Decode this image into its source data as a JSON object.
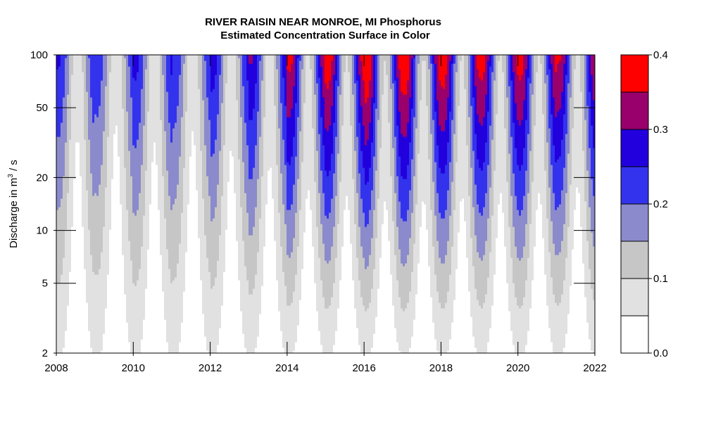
{
  "chart_data": {
    "type": "contour",
    "title": "RIVER RAISIN NEAR MONROE, MI   Phosphorus",
    "subtitle": "Estimated Concentration Surface in Color",
    "ylabel": {
      "prefix": "Discharge in m",
      "superscript": "3",
      "suffix": " / s"
    },
    "x": {
      "range": [
        2008,
        2022
      ],
      "ticks": [
        2008,
        2010,
        2012,
        2014,
        2016,
        2018,
        2020,
        2022
      ]
    },
    "y": {
      "scale": "log",
      "range": [
        2,
        100
      ],
      "ticks": [
        2,
        5,
        10,
        20,
        50,
        100
      ]
    },
    "levels": [
      0.0,
      0.05,
      0.1,
      0.15,
      0.2,
      0.25,
      0.3,
      0.35,
      0.4
    ],
    "colorbar": {
      "ticks": [
        "0.0",
        "0.1",
        "0.2",
        "0.3",
        "0.4"
      ],
      "colors": [
        "#ffffff",
        "#e1e1e1",
        "#c6c6c6",
        "#8a8acc",
        "#3333ee",
        "#2200dd",
        "#99006b",
        "#ff0000"
      ]
    },
    "annual_peak_concentration": {
      "years": [
        2008,
        2009,
        2010,
        2011,
        2012,
        2013,
        2014,
        2015,
        2016,
        2017,
        2018,
        2019,
        2020,
        2021
      ],
      "max_at_100": [
        0.26,
        0.24,
        0.27,
        0.25,
        0.28,
        0.31,
        0.37,
        0.39,
        0.41,
        0.4,
        0.39,
        0.38,
        0.38,
        0.36
      ]
    }
  }
}
